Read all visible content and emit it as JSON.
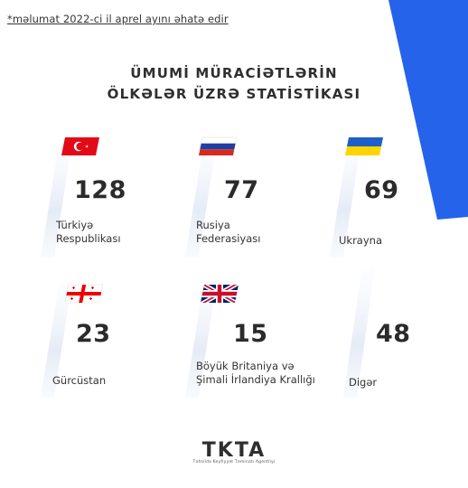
{
  "note": "*məlumat 2022-ci il aprel ayını əhatə edir",
  "title": {
    "line1": "ÜMUMİ MÜRACİƏTLƏRİN",
    "line2": "ÖLKƏLƏR ÜZRƏ STATİSTİKASI"
  },
  "countries": [
    {
      "count": "128",
      "label_line1": "Türkiyə",
      "label_line2": "Respublikası",
      "flag": "turkey-flag"
    },
    {
      "count": "77",
      "label_line1": "Rusiya",
      "label_line2": "Federasiyası",
      "flag": "russia-flag"
    },
    {
      "count": "69",
      "label_line1": "Ukrayna",
      "label_line2": "",
      "flag": "ukraine-flag"
    },
    {
      "count": "23",
      "label_line1": "Gürcüstan",
      "label_line2": "",
      "flag": "georgia-flag"
    },
    {
      "count": "15",
      "label_line1": "Böyük Britaniya və",
      "label_line2": "Şimali İrlandiya Krallığı",
      "flag": "uk-flag"
    },
    {
      "count": "48",
      "label_line1": "Digər",
      "label_line2": "",
      "flag": ""
    }
  ],
  "logo": {
    "main": "TKTA",
    "sub": "Təhsildə Keyfiyyət Təminatı Agentliyi"
  },
  "colors": {
    "accent_blue": "#2563eb",
    "panel_tint": "#e7edf7",
    "text": "#2b2b2b"
  }
}
